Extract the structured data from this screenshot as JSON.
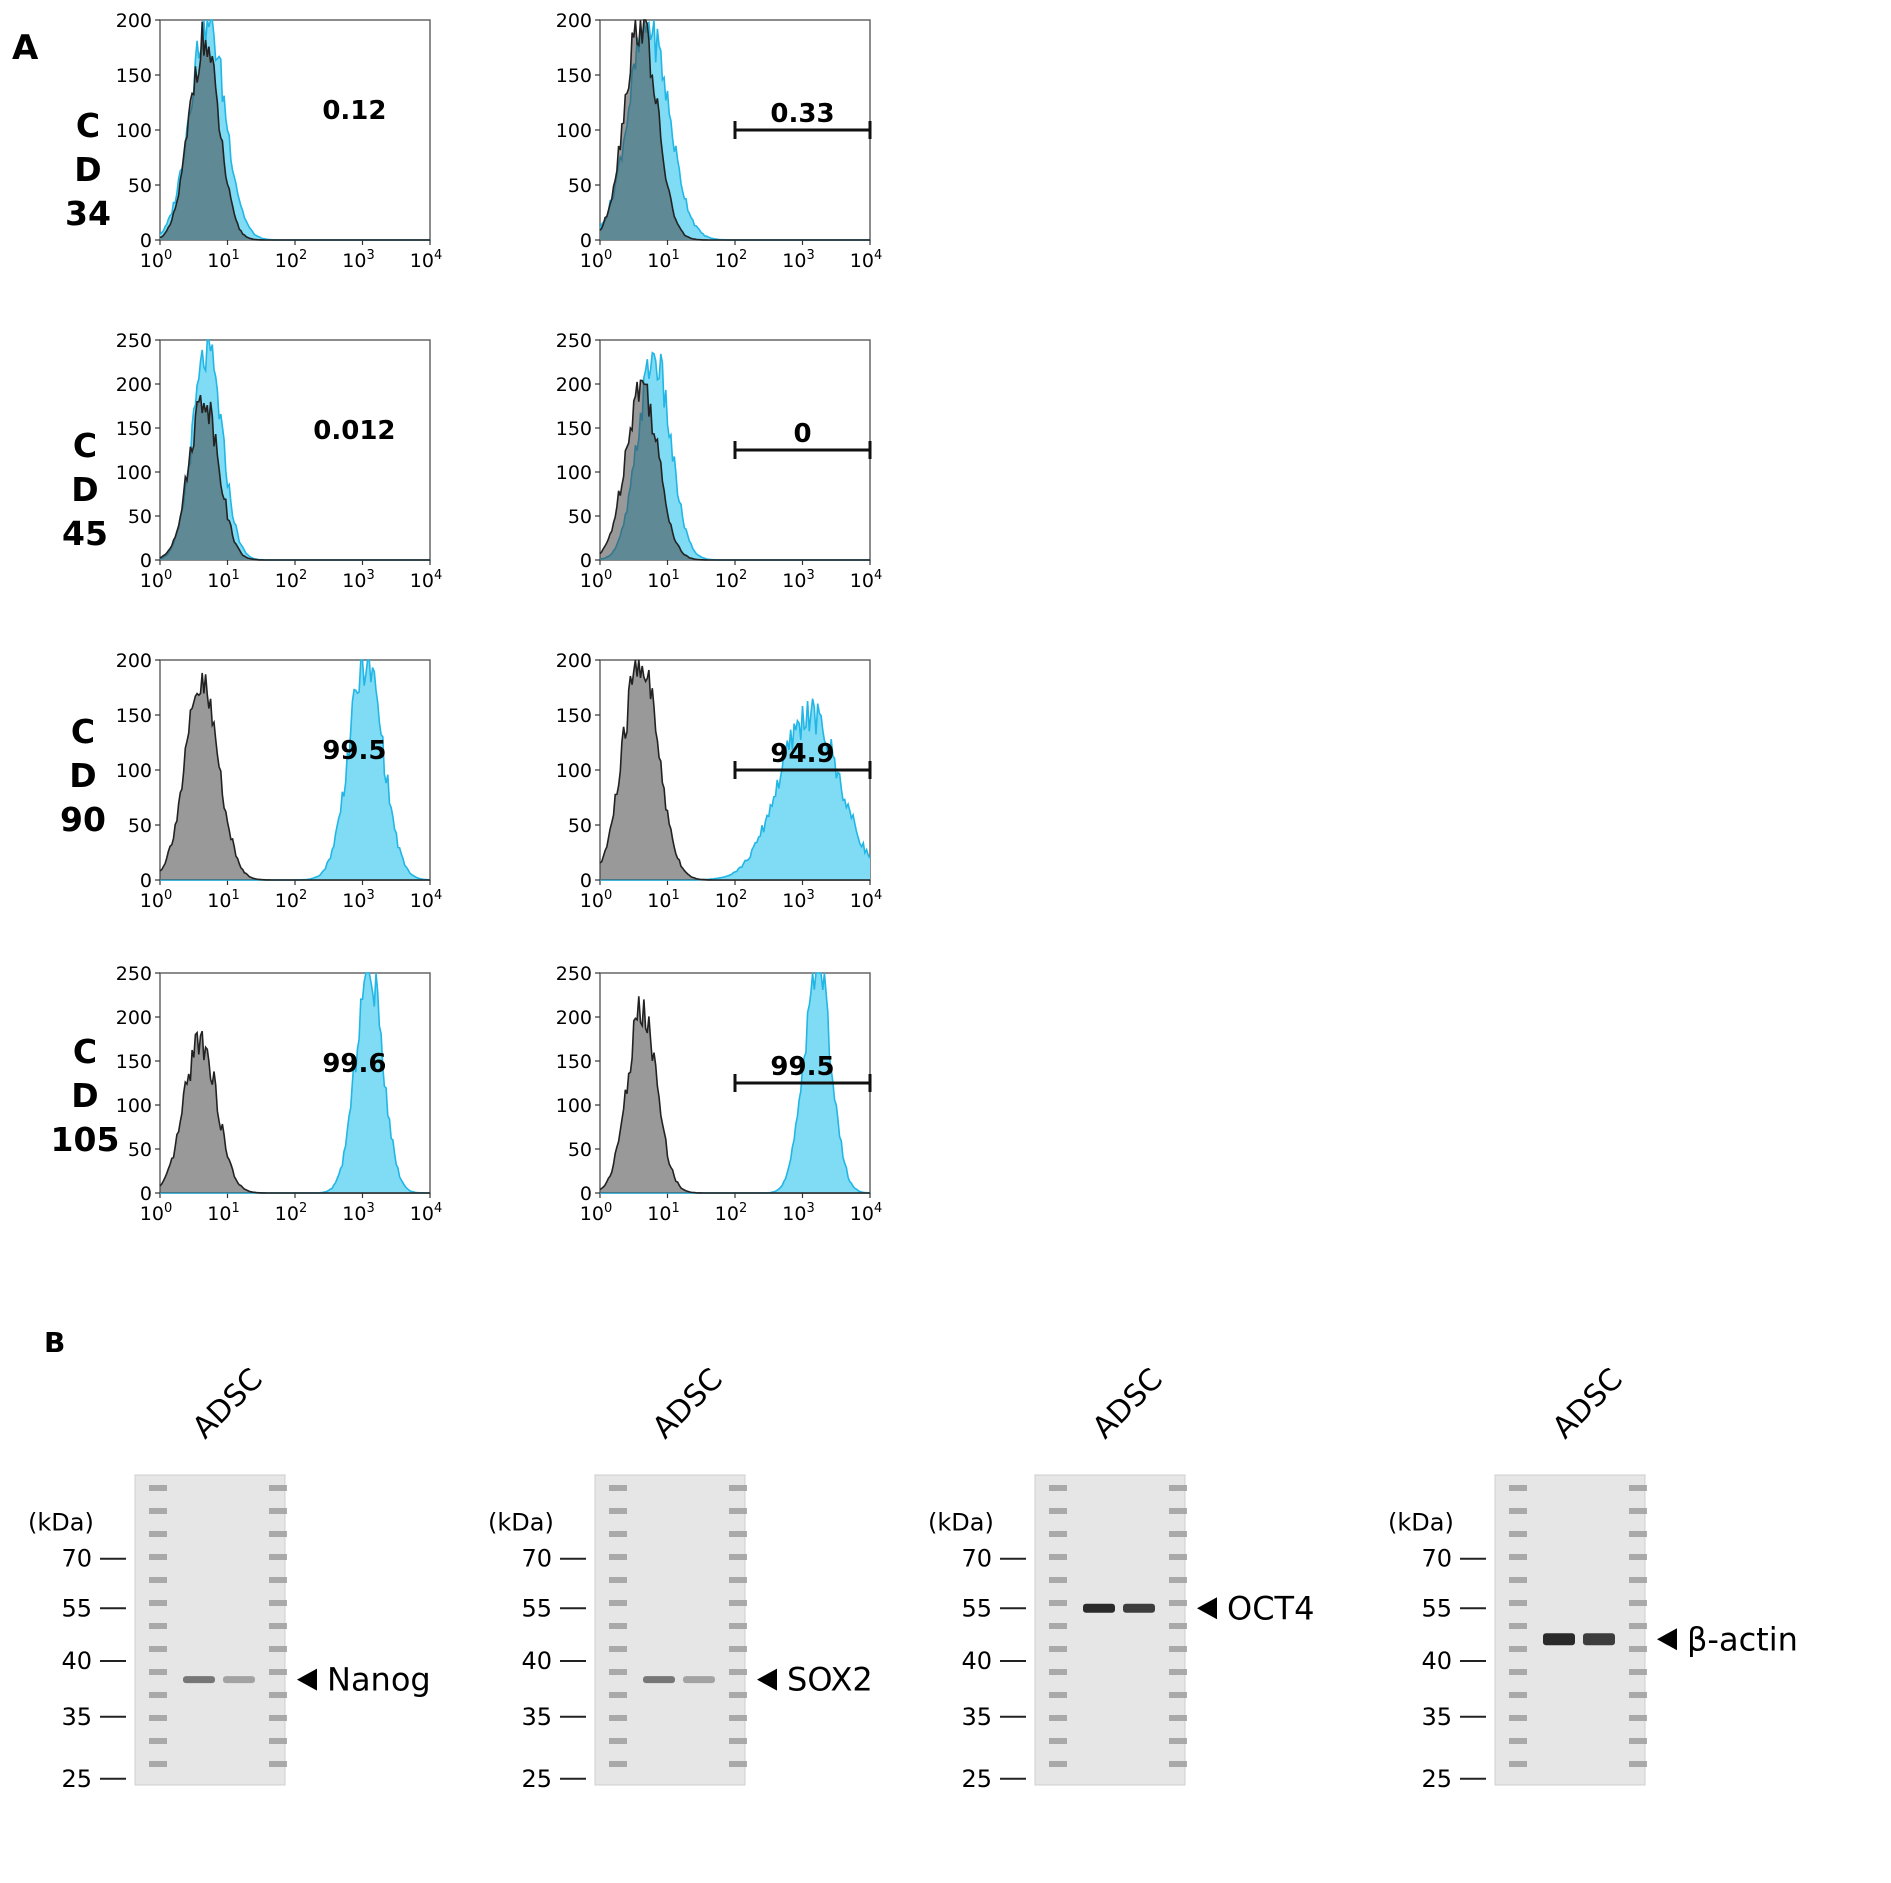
{
  "figure": {
    "panel_a_label": "A",
    "panel_b_label": "B"
  },
  "flow": {
    "markers": [
      {
        "lines": [
          "C",
          "D",
          "34"
        ]
      },
      {
        "lines": [
          "C",
          "D",
          "45"
        ]
      },
      {
        "lines": [
          "C",
          "D",
          "90"
        ]
      },
      {
        "lines": [
          "C",
          "D",
          "105"
        ]
      }
    ],
    "x_ticks": [
      "10",
      "10",
      "10",
      "10",
      "10"
    ],
    "x_exponents": [
      "0",
      "1",
      "2",
      "3",
      "4"
    ]
  },
  "chart_data": [
    {
      "type": "area",
      "title": "CD34 left",
      "marker": "CD34",
      "annotation": "0.12",
      "gate": false,
      "xscale": "log",
      "xlim": [
        1,
        10000
      ],
      "ylim": [
        0,
        200
      ],
      "yticks": [
        0,
        50,
        100,
        150,
        200
      ],
      "series": [
        {
          "name": "control",
          "peak_log": 0.65,
          "peak": 180,
          "width": 0.22
        },
        {
          "name": "marker",
          "peak_log": 0.7,
          "peak": 200,
          "width": 0.26
        }
      ]
    },
    {
      "type": "area",
      "title": "CD34 right",
      "marker": "CD34",
      "annotation": "0.33",
      "gate": true,
      "gate_range": [
        100,
        10000
      ],
      "xscale": "log",
      "xlim": [
        1,
        10000
      ],
      "ylim": [
        0,
        200
      ],
      "yticks": [
        0,
        50,
        100,
        150,
        200
      ],
      "series": [
        {
          "name": "control",
          "peak_log": 0.6,
          "peak": 200,
          "width": 0.24
        },
        {
          "name": "marker",
          "peak_log": 0.72,
          "peak": 195,
          "width": 0.3
        }
      ]
    },
    {
      "type": "area",
      "title": "CD45 left",
      "marker": "CD45",
      "annotation": "0.012",
      "gate": false,
      "xscale": "log",
      "xlim": [
        1,
        10000
      ],
      "ylim": [
        0,
        250
      ],
      "yticks": [
        0,
        50,
        100,
        150,
        200,
        250
      ],
      "series": [
        {
          "name": "control",
          "peak_log": 0.65,
          "peak": 185,
          "width": 0.22
        },
        {
          "name": "marker",
          "peak_log": 0.7,
          "peak": 235,
          "width": 0.22
        }
      ]
    },
    {
      "type": "area",
      "title": "CD45 right",
      "marker": "CD45",
      "annotation": "0",
      "gate": true,
      "gate_range": [
        100,
        10000
      ],
      "xscale": "log",
      "xlim": [
        1,
        10000
      ],
      "ylim": [
        0,
        250
      ],
      "yticks": [
        0,
        50,
        100,
        150,
        200,
        250
      ],
      "series": [
        {
          "name": "control",
          "peak_log": 0.62,
          "peak": 200,
          "width": 0.24
        },
        {
          "name": "marker",
          "peak_log": 0.8,
          "peak": 230,
          "width": 0.24
        }
      ]
    },
    {
      "type": "area",
      "title": "CD90 left",
      "marker": "CD90",
      "annotation": "99.5",
      "gate": false,
      "xscale": "log",
      "xlim": [
        1,
        10000
      ],
      "ylim": [
        0,
        200
      ],
      "yticks": [
        0,
        50,
        100,
        150,
        200
      ],
      "series": [
        {
          "name": "control",
          "peak_log": 0.62,
          "peak": 175,
          "width": 0.25
        },
        {
          "name": "marker",
          "peak_log": 3.05,
          "peak": 200,
          "width": 0.25
        }
      ]
    },
    {
      "type": "area",
      "title": "CD90 right",
      "marker": "CD90",
      "annotation": "94.9",
      "gate": true,
      "gate_range": [
        100,
        10000
      ],
      "xscale": "log",
      "xlim": [
        1,
        10000
      ],
      "ylim": [
        0,
        200
      ],
      "yticks": [
        0,
        50,
        100,
        150,
        200
      ],
      "series": [
        {
          "name": "control",
          "peak_log": 0.6,
          "peak": 200,
          "width": 0.26
        },
        {
          "name": "marker",
          "peak_log": 3.1,
          "peak": 150,
          "width": 0.45
        }
      ]
    },
    {
      "type": "area",
      "title": "CD105 left",
      "marker": "CD105",
      "annotation": "99.6",
      "gate": false,
      "xscale": "log",
      "xlim": [
        1,
        10000
      ],
      "ylim": [
        0,
        250
      ],
      "yticks": [
        0,
        50,
        100,
        150,
        200,
        250
      ],
      "series": [
        {
          "name": "control",
          "peak_log": 0.6,
          "peak": 175,
          "width": 0.24
        },
        {
          "name": "marker",
          "peak_log": 3.1,
          "peak": 255,
          "width": 0.2
        }
      ]
    },
    {
      "type": "area",
      "title": "CD105 right",
      "marker": "CD105",
      "annotation": "99.5",
      "gate": true,
      "gate_range": [
        100,
        10000
      ],
      "xscale": "log",
      "xlim": [
        1,
        10000
      ],
      "ylim": [
        0,
        250
      ],
      "yticks": [
        0,
        50,
        100,
        150,
        200,
        250
      ],
      "series": [
        {
          "name": "control",
          "peak_log": 0.62,
          "peak": 205,
          "width": 0.22
        },
        {
          "name": "marker",
          "peak_log": 3.22,
          "peak": 260,
          "width": 0.2
        }
      ]
    }
  ],
  "blots": [
    {
      "sample_label": "ADSC",
      "kda_label": "(kDa)",
      "ladder": [
        "70",
        "55",
        "40",
        "35",
        "25"
      ],
      "target": "Nanog",
      "target_kda": 38
    },
    {
      "sample_label": "ADSC",
      "kda_label": "(kDa)",
      "ladder": [
        "70",
        "55",
        "40",
        "35",
        "25"
      ],
      "target": "SOX2",
      "target_kda": 38
    },
    {
      "sample_label": "ADSC",
      "kda_label": "(kDa)",
      "ladder": [
        "70",
        "55",
        "40",
        "35",
        "25"
      ],
      "target": "OCT4",
      "target_kda": 55
    },
    {
      "sample_label": "ADSC",
      "kda_label": "(kDa)",
      "ladder": [
        "70",
        "55",
        "40",
        "35",
        "25"
      ],
      "target": "β-actin",
      "target_kda": 45
    }
  ],
  "colors": {
    "marker_fill": "#7fdcf4",
    "marker_line": "#22b6e6",
    "control_fill": "rgba(70,70,70,0.55)",
    "control_line": "#222222",
    "membrane": "#e6e6e6"
  }
}
